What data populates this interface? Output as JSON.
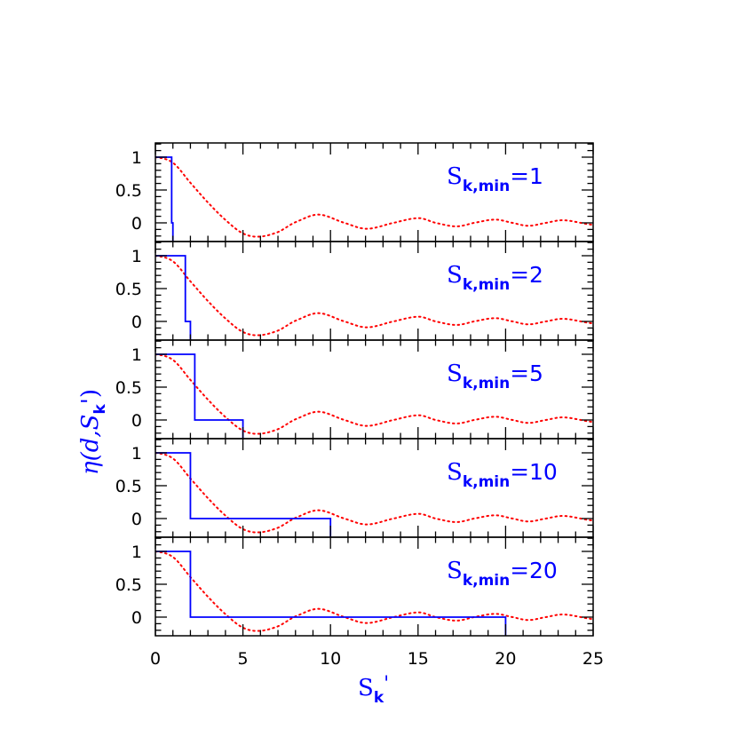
{
  "chart_data": {
    "type": "line",
    "layout": "5 stacked panels sharing x axis",
    "xlabel": "S_k'",
    "xlabel_main": "S",
    "xlabel_sub": "k",
    "xlabel_suffix": "'",
    "ylabel_prefix": "η(d,S",
    "ylabel_sub": "k",
    "ylabel_suffix": "')",
    "xlim": [
      0,
      25
    ],
    "ylim": [
      -0.284,
      1.216
    ],
    "x_ticks": [
      0,
      5,
      10,
      15,
      20,
      25
    ],
    "x_tick_labels": [
      "0",
      "5",
      "10",
      "15",
      "20",
      "25"
    ],
    "y_ticks": [
      0,
      0.5,
      1
    ],
    "y_tick_labels": [
      "0",
      "0.5",
      "1"
    ],
    "colors": {
      "step": "#0000ff",
      "curve": "#ff0000",
      "axes": "#000000"
    },
    "curve": {
      "style": "dotted",
      "x": [
        0,
        1,
        2,
        3,
        4,
        5,
        5.92,
        7,
        7.9,
        9.3,
        10.8,
        12.07,
        13.6,
        15.04,
        16.0,
        17.2,
        18.2,
        19.4,
        20.4,
        21.3,
        22.3,
        23.3,
        25
      ],
      "y": [
        1,
        0.915,
        0.61,
        0.31,
        0.045,
        -0.16,
        -0.21,
        -0.14,
        0.0,
        0.126,
        0.0,
        -0.09,
        0.0,
        0.072,
        0.0,
        -0.054,
        0.0,
        0.05,
        0.0,
        -0.045,
        0.0,
        0.04,
        -0.03
      ]
    },
    "panels": [
      {
        "label_main": "S",
        "label_sub": "k,min",
        "label_eq": "=",
        "label_value": "1",
        "step_one_until": 0.93,
        "step_zero_until": 1
      },
      {
        "label_main": "S",
        "label_sub": "k,min",
        "label_eq": "=",
        "label_value": "2",
        "step_one_until": 1.71,
        "step_zero_until": 2
      },
      {
        "label_main": "S",
        "label_sub": "k,min",
        "label_eq": "=",
        "label_value": "5",
        "step_one_until": 2.25,
        "step_zero_until": 5
      },
      {
        "label_main": "S",
        "label_sub": "k,min",
        "label_eq": "=",
        "label_value": "10",
        "step_one_until": 2.0,
        "step_zero_until": 10
      },
      {
        "label_main": "S",
        "label_sub": "k,min",
        "label_eq": "=",
        "label_value": "20",
        "step_one_until": 2.0,
        "step_zero_until": 20
      }
    ]
  }
}
